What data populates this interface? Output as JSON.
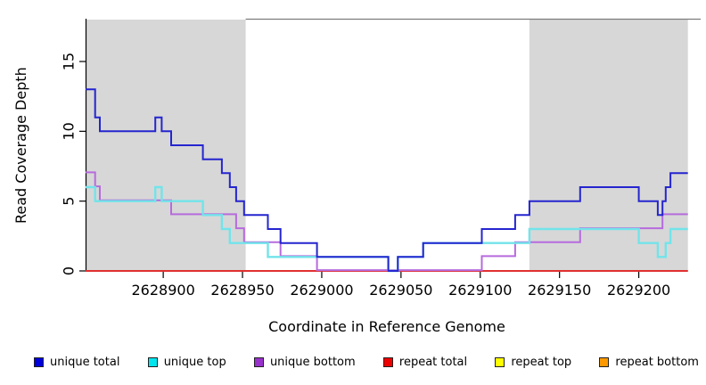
{
  "figure": {
    "background": "#ffffff",
    "shade_color": "#d7d7d7",
    "border_color": "#7d7d7d"
  },
  "chart_data": {
    "type": "line",
    "line_style": "step-after",
    "title": "",
    "xlabel": "Coordinate in Reference Genome",
    "ylabel": "Read Coverage Depth",
    "xlim": [
      2628851,
      2629231
    ],
    "ylim": [
      0,
      18
    ],
    "x_ticks": [
      2628900,
      2628950,
      2629000,
      2629050,
      2629100,
      2629150,
      2629200
    ],
    "y_ticks": [
      0,
      5,
      10,
      15
    ],
    "grid": false,
    "legend_position": "bottom",
    "shaded_regions": [
      {
        "from": 2628851,
        "to": 2628952,
        "color": "#d7d7d7"
      },
      {
        "from": 2629131,
        "to": 2629231,
        "color": "#d7d7d7"
      }
    ],
    "series": [
      {
        "name": "unique total",
        "color": "#0000dd",
        "line_color": "#2525cf",
        "points": [
          [
            2628851,
            13
          ],
          [
            2628857,
            11
          ],
          [
            2628860,
            10
          ],
          [
            2628895,
            11
          ],
          [
            2628899,
            10
          ],
          [
            2628905,
            9
          ],
          [
            2628925,
            8
          ],
          [
            2628937,
            7
          ],
          [
            2628942,
            6
          ],
          [
            2628946,
            5
          ],
          [
            2628951,
            4
          ],
          [
            2628966,
            3
          ],
          [
            2628974,
            2
          ],
          [
            2628997,
            1
          ],
          [
            2629042,
            0
          ],
          [
            2629048,
            1
          ],
          [
            2629064,
            2
          ],
          [
            2629101,
            3
          ],
          [
            2629122,
            4
          ],
          [
            2629131,
            5
          ],
          [
            2629163,
            6
          ],
          [
            2629200,
            5
          ],
          [
            2629212,
            4
          ],
          [
            2629215,
            5
          ],
          [
            2629217,
            6
          ],
          [
            2629220,
            7
          ]
        ]
      },
      {
        "name": "unique top",
        "color": "#00e5ee",
        "line_color": "#72e4ea",
        "points": [
          [
            2628851,
            6
          ],
          [
            2628857,
            5
          ],
          [
            2628895,
            6
          ],
          [
            2628899,
            5
          ],
          [
            2628925,
            4
          ],
          [
            2628937,
            3
          ],
          [
            2628942,
            2
          ],
          [
            2628966,
            1
          ],
          [
            2629042,
            0
          ],
          [
            2629048,
            1
          ],
          [
            2629064,
            2
          ],
          [
            2629131,
            3
          ],
          [
            2629200,
            2
          ],
          [
            2629212,
            1
          ],
          [
            2629217,
            2
          ],
          [
            2629220,
            3
          ]
        ]
      },
      {
        "name": "unique bottom",
        "color": "#9932cc",
        "line_color": "#b66bdd",
        "points": [
          [
            2628851,
            7
          ],
          [
            2628857,
            6
          ],
          [
            2628860,
            5
          ],
          [
            2628905,
            4
          ],
          [
            2628946,
            3
          ],
          [
            2628951,
            2
          ],
          [
            2628974,
            1
          ],
          [
            2628997,
            0
          ],
          [
            2629101,
            1
          ],
          [
            2629122,
            2
          ],
          [
            2629163,
            3
          ],
          [
            2629215,
            4
          ]
        ]
      },
      {
        "name": "repeat total",
        "color": "#ee0000",
        "line_color": "#e03030",
        "points": [
          [
            2628851,
            0
          ]
        ]
      },
      {
        "name": "repeat top",
        "color": "#ffff00",
        "line_color": "#ffee00",
        "points": [
          [
            2628851,
            0
          ]
        ]
      },
      {
        "name": "repeat bottom",
        "color": "#ff9900",
        "line_color": "#ffa000",
        "points": [
          [
            2628851,
            0
          ]
        ]
      }
    ]
  }
}
